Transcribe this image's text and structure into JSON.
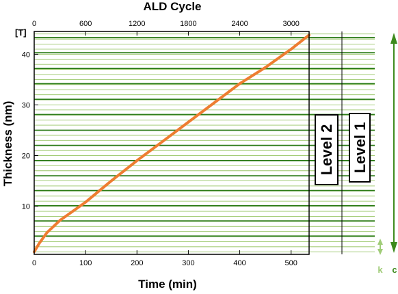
{
  "chart_data": {
    "type": "line",
    "title": "",
    "xlabel": "Time (min)",
    "ylabel": "Thickness (nm)",
    "top_xlabel": "ALD Cycle",
    "ylabel_unit_tag": "[T]",
    "xlim": [
      0,
      535
    ],
    "ylim": [
      0.5,
      44.5
    ],
    "x_ticks": [
      0,
      100,
      200,
      300,
      400,
      500
    ],
    "y_ticks": [
      10,
      20,
      30,
      40
    ],
    "top_ticks": [
      0,
      600,
      1200,
      1800,
      2400,
      3000
    ],
    "top_tick_factor": 6,
    "series": [
      {
        "color": "#ee7d31",
        "x": [
          0,
          10,
          25,
          50,
          75,
          100,
          150,
          200,
          250,
          300,
          350,
          400,
          450,
          500,
          535
        ],
        "y": [
          1.0,
          2.7,
          4.8,
          7.2,
          9.0,
          10.8,
          15.0,
          19.0,
          22.8,
          26.6,
          30.4,
          34.2,
          37.4,
          41.0,
          43.8
        ]
      }
    ],
    "levels": [
      {
        "label": "Level 2",
        "color": "#2e7d1a",
        "lines": [
          4.1,
          10.1,
          16.0,
          22.0,
          28.1,
          34.2,
          40.3
        ]
      },
      {
        "label": "Level 1",
        "color": "#2e7d1a",
        "lines": [
          7.1,
          13.1,
          19.0,
          25.0,
          31.1,
          37.2,
          43.3
        ]
      }
    ],
    "minor_line_color": "#97c465",
    "minor_step": 1.0,
    "annotations": [
      {
        "text": "k",
        "color": "#a0cc78"
      },
      {
        "text": "c",
        "color": "#3d8a1c"
      }
    ]
  }
}
